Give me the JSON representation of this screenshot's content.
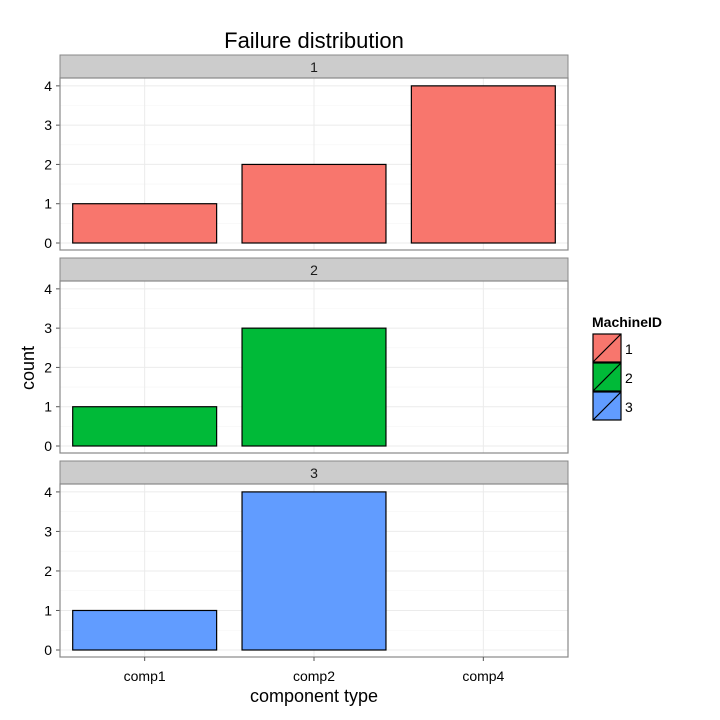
{
  "chart_data": {
    "type": "bar",
    "title": "Failure distribution",
    "xlabel": "component type",
    "ylabel": "count",
    "categories": [
      "comp1",
      "comp2",
      "comp4"
    ],
    "ylim": [
      0,
      4.2
    ],
    "yticks": [
      0,
      1,
      2,
      3,
      4
    ],
    "grid": true,
    "legend": {
      "title": "MachineID",
      "placement": "right"
    },
    "panels": [
      {
        "label": "1",
        "color": "#F8766D",
        "values": [
          1,
          2,
          4
        ]
      },
      {
        "label": "2",
        "color": "#00BA38",
        "values": [
          1,
          3,
          0
        ]
      },
      {
        "label": "3",
        "color": "#619CFF",
        "values": [
          1,
          4,
          0
        ]
      }
    ]
  }
}
